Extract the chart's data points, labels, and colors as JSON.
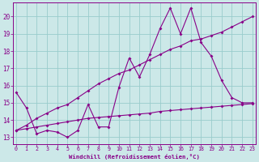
{
  "xlabel": "Windchill (Refroidissement éolien,°C)",
  "bg_color": "#cce8e8",
  "line_color": "#880088",
  "grid_color": "#99cccc",
  "x_ticks": [
    0,
    1,
    2,
    3,
    4,
    5,
    6,
    7,
    8,
    9,
    10,
    11,
    12,
    13,
    14,
    15,
    16,
    17,
    18,
    19,
    20,
    21,
    22,
    23
  ],
  "y_ticks": [
    13,
    14,
    15,
    16,
    17,
    18,
    19,
    20
  ],
  "ylim": [
    12.6,
    20.8
  ],
  "xlim": [
    -0.3,
    23.3
  ],
  "series": [
    [
      15.6,
      14.7,
      13.2,
      13.4,
      13.3,
      13.0,
      13.4,
      14.9,
      13.6,
      13.6,
      15.9,
      17.6,
      16.5,
      17.8,
      19.3,
      20.5,
      19.0,
      20.5,
      18.5,
      17.7,
      16.3,
      15.3,
      15.0,
      15.0
    ],
    [
      13.4,
      13.5,
      13.6,
      13.7,
      13.8,
      13.9,
      14.0,
      14.1,
      14.15,
      14.2,
      14.25,
      14.3,
      14.35,
      14.4,
      14.5,
      14.55,
      14.6,
      14.65,
      14.7,
      14.75,
      14.8,
      14.85,
      14.9,
      14.95
    ],
    [
      13.4,
      13.7,
      14.1,
      14.4,
      14.7,
      14.9,
      15.3,
      15.7,
      16.1,
      16.4,
      16.7,
      16.9,
      17.2,
      17.5,
      17.8,
      18.1,
      18.3,
      18.6,
      18.7,
      18.9,
      19.1,
      19.4,
      19.7,
      20.0
    ]
  ]
}
